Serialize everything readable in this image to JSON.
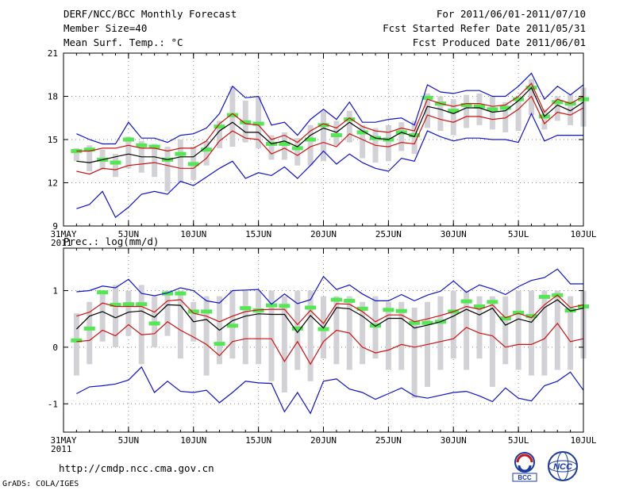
{
  "header": {
    "title": "DERF/NCC/BCC Monthly Forecast",
    "member_size": "Member Size=40",
    "variable_top": "Mean Surf. Temp.: °C",
    "period": "For 2011/06/01-2011/07/10",
    "fcst_started": "Fcst Started Refer Date 2011/05/31",
    "fcst_produced": "Fcst Produced Date 2011/06/01"
  },
  "footer": {
    "url": "http://cmdp.ncc.cma.gov.cn",
    "credit": "GrADS: COLA/IGES",
    "logo_left": "BCC",
    "logo_right": "NCC"
  },
  "colors": {
    "box": "#d2d2d6",
    "green": "#52e852",
    "black": "#000000",
    "red": "#d01010",
    "blue": "#1010d0",
    "grid": "#888888"
  },
  "chart_data": [
    {
      "type": "line",
      "title": "Mean Surf. Temp.: °C",
      "x_tick_labels": [
        "31MAY\n2011",
        "5JUN",
        "10JUN",
        "15JUN",
        "20JUN",
        "25JUN",
        "30JUN",
        "5JUL",
        "10JUL"
      ],
      "x_tick_days": [
        0,
        5,
        10,
        15,
        20,
        25,
        30,
        35,
        40
      ],
      "xlim": [
        0,
        40
      ],
      "ylim": [
        9,
        21
      ],
      "yticks": [
        9,
        12,
        15,
        18,
        21
      ],
      "days": [
        1,
        2,
        3,
        4,
        5,
        6,
        7,
        8,
        9,
        10,
        11,
        12,
        13,
        14,
        15,
        16,
        17,
        18,
        19,
        20,
        21,
        22,
        23,
        24,
        25,
        26,
        27,
        28,
        29,
        30,
        31,
        32,
        33,
        34,
        35,
        36,
        37,
        38,
        39,
        40
      ],
      "series": [
        {
          "name": "box_top",
          "values": [
            14.4,
            14.6,
            14.3,
            14.0,
            15.2,
            14.9,
            14.7,
            14.5,
            15.0,
            14.5,
            14.9,
            16.3,
            18.7,
            17.7,
            18.0,
            15.3,
            15.5,
            15.1,
            16.0,
            17.0,
            16.3,
            17.0,
            16.0,
            15.8,
            16.0,
            16.2,
            16.3,
            18.2,
            18.0,
            17.8,
            18.1,
            18.2,
            18.0,
            17.6,
            17.7,
            19.2,
            17.1,
            18.0,
            18.1,
            18.6
          ]
        },
        {
          "name": "box_bottom",
          "values": [
            13.5,
            12.8,
            12.9,
            12.4,
            13.0,
            12.7,
            12.4,
            11.4,
            12.0,
            12.2,
            13.2,
            14.4,
            14.5,
            14.8,
            14.4,
            13.6,
            13.6,
            13.2,
            13.2,
            13.5,
            14.6,
            14.8,
            13.7,
            13.4,
            13.5,
            14.2,
            14.0,
            15.8,
            15.6,
            15.3,
            15.8,
            16.0,
            15.7,
            15.5,
            15.6,
            16.7,
            15.7,
            16.3,
            16.0,
            15.9
          ]
        },
        {
          "name": "green_dash",
          "values": [
            14.2,
            14.3,
            13.6,
            13.4,
            15.0,
            14.6,
            14.5,
            13.6,
            14.0,
            13.3,
            14.3,
            15.9,
            16.7,
            16.2,
            16.1,
            14.7,
            14.7,
            14.4,
            15.0,
            16.0,
            15.3,
            16.4,
            15.5,
            15.1,
            15.0,
            15.5,
            15.3,
            17.9,
            17.5,
            17.0,
            17.4,
            17.3,
            17.1,
            17.2,
            17.8,
            18.6,
            16.6,
            17.6,
            17.5,
            17.8
          ]
        },
        {
          "name": "mean",
          "values": [
            13.5,
            13.4,
            13.6,
            13.8,
            14.0,
            13.8,
            13.8,
            13.6,
            13.8,
            13.8,
            14.5,
            15.6,
            16.2,
            15.5,
            15.5,
            14.7,
            14.9,
            14.5,
            15.3,
            15.8,
            15.5,
            16.2,
            15.6,
            15.1,
            15.0,
            15.5,
            15.2,
            17.3,
            17.1,
            16.8,
            17.2,
            17.2,
            16.9,
            17.0,
            17.7,
            18.6,
            16.6,
            17.4,
            17.0,
            17.6
          ]
        },
        {
          "name": "red_upper",
          "values": [
            14.2,
            14.2,
            14.4,
            14.4,
            14.6,
            14.4,
            14.4,
            14.2,
            14.4,
            14.4,
            14.9,
            16.1,
            16.8,
            16.1,
            16.0,
            15.0,
            15.3,
            14.8,
            15.6,
            16.1,
            15.8,
            16.5,
            15.9,
            15.6,
            15.5,
            15.8,
            15.6,
            17.8,
            17.5,
            17.3,
            17.5,
            17.5,
            17.3,
            17.4,
            18.0,
            18.9,
            16.9,
            17.8,
            17.5,
            18.0
          ]
        },
        {
          "name": "red_lower",
          "values": [
            12.8,
            12.6,
            13.0,
            12.9,
            13.2,
            13.3,
            13.4,
            13.2,
            13.0,
            13.0,
            13.7,
            14.9,
            15.6,
            15.1,
            15.0,
            14.0,
            14.4,
            13.9,
            14.5,
            14.8,
            14.5,
            15.4,
            15.0,
            14.6,
            14.5,
            14.8,
            14.7,
            16.7,
            16.4,
            16.2,
            16.6,
            16.6,
            16.4,
            16.5,
            17.1,
            18.0,
            16.1,
            16.9,
            16.7,
            17.2
          ]
        },
        {
          "name": "blue_upper",
          "values": [
            15.4,
            15.0,
            14.7,
            14.7,
            16.2,
            15.1,
            15.1,
            14.8,
            15.3,
            15.4,
            15.8,
            16.8,
            18.7,
            17.9,
            18.0,
            16.0,
            16.2,
            15.3,
            16.4,
            17.1,
            16.4,
            17.6,
            16.2,
            16.2,
            16.4,
            16.5,
            16.0,
            18.8,
            18.3,
            18.2,
            18.4,
            18.4,
            18.0,
            18.0,
            18.7,
            19.6,
            17.8,
            18.7,
            18.1,
            18.8
          ]
        },
        {
          "name": "blue_lower",
          "values": [
            10.2,
            10.5,
            11.4,
            9.6,
            10.3,
            11.2,
            11.4,
            11.2,
            12.1,
            11.8,
            12.4,
            13.0,
            13.5,
            12.3,
            12.7,
            12.5,
            13.1,
            12.3,
            13.2,
            14.2,
            13.3,
            14.0,
            13.4,
            13.0,
            12.8,
            13.7,
            13.5,
            15.6,
            15.2,
            14.9,
            15.1,
            15.1,
            15.0,
            15.0,
            14.8,
            16.8,
            14.9,
            15.3,
            15.3,
            15.3
          ]
        }
      ]
    },
    {
      "type": "line",
      "title": "Prec.: log(mm/d)",
      "x_tick_labels": [
        "31MAY\n2011",
        "5JUN",
        "10JUN",
        "15JUN",
        "20JUN",
        "25JUN",
        "30JUN",
        "5JUL",
        "10JUL"
      ],
      "x_tick_days": [
        0,
        5,
        10,
        15,
        20,
        25,
        30,
        35,
        40
      ],
      "xlim": [
        0,
        40
      ],
      "ylim": [
        -1.5,
        1.75
      ],
      "yticks": [
        -1,
        0,
        1
      ],
      "days": [
        1,
        2,
        3,
        4,
        5,
        6,
        7,
        8,
        9,
        10,
        11,
        12,
        13,
        14,
        15,
        16,
        17,
        18,
        19,
        20,
        21,
        22,
        23,
        24,
        25,
        26,
        27,
        28,
        29,
        30,
        31,
        32,
        33,
        34,
        35,
        36,
        37,
        38,
        39,
        40
      ],
      "series": [
        {
          "name": "box_top",
          "values": [
            0.6,
            0.8,
            1.0,
            1.1,
            1.0,
            1.1,
            0.9,
            1.0,
            1.0,
            0.8,
            0.9,
            0.9,
            1.0,
            1.0,
            1.0,
            1.0,
            0.9,
            1.0,
            1.0,
            0.9,
            0.9,
            0.9,
            0.8,
            0.9,
            0.8,
            0.8,
            0.7,
            0.8,
            0.9,
            1.0,
            1.0,
            0.9,
            0.9,
            0.9,
            1.0,
            1.0,
            1.0,
            1.0,
            0.9,
            1.0
          ]
        },
        {
          "name": "box_bottom",
          "values": [
            -0.5,
            -0.3,
            0.1,
            0.0,
            0.2,
            -0.3,
            0.0,
            0.2,
            -0.2,
            0.1,
            -0.5,
            -0.3,
            -0.2,
            -0.3,
            -0.3,
            -0.6,
            -0.8,
            -0.4,
            -0.6,
            -0.2,
            -0.3,
            -0.4,
            -0.3,
            -0.2,
            -0.4,
            -0.4,
            -0.9,
            -0.7,
            -0.4,
            -0.2,
            -0.4,
            -0.2,
            -0.7,
            -0.3,
            -0.4,
            -0.5,
            -0.5,
            -0.4,
            -0.4,
            -0.2
          ]
        },
        {
          "name": "green_dash",
          "values": [
            0.12,
            0.33,
            0.97,
            0.75,
            0.76,
            0.76,
            0.42,
            0.95,
            0.95,
            0.63,
            0.63,
            0.06,
            0.38,
            0.69,
            0.65,
            0.74,
            0.73,
            0.33,
            0.7,
            0.32,
            0.84,
            0.82,
            0.68,
            0.38,
            0.66,
            0.64,
            0.43,
            0.43,
            0.45,
            0.63,
            0.81,
            0.72,
            0.8,
            0.51,
            0.61,
            0.55,
            0.89,
            0.92,
            0.65,
            0.72
          ]
        },
        {
          "name": "mean",
          "values": [
            0.32,
            0.55,
            0.63,
            0.52,
            0.62,
            0.64,
            0.53,
            0.75,
            0.74,
            0.45,
            0.49,
            0.3,
            0.47,
            0.55,
            0.59,
            0.58,
            0.58,
            0.26,
            0.56,
            0.34,
            0.7,
            0.68,
            0.55,
            0.37,
            0.51,
            0.51,
            0.34,
            0.39,
            0.45,
            0.55,
            0.67,
            0.57,
            0.69,
            0.39,
            0.5,
            0.44,
            0.7,
            0.84,
            0.64,
            0.69
          ]
        },
        {
          "name": "red_upper",
          "values": [
            0.55,
            0.62,
            0.78,
            0.72,
            0.72,
            0.72,
            0.62,
            0.82,
            0.84,
            0.6,
            0.55,
            0.45,
            0.55,
            0.63,
            0.66,
            0.67,
            0.67,
            0.4,
            0.65,
            0.42,
            0.77,
            0.76,
            0.63,
            0.45,
            0.57,
            0.57,
            0.45,
            0.5,
            0.56,
            0.63,
            0.72,
            0.67,
            0.75,
            0.52,
            0.6,
            0.52,
            0.75,
            0.92,
            0.7,
            0.75
          ]
        },
        {
          "name": "red_lower",
          "values": [
            0.1,
            0.12,
            0.3,
            0.2,
            0.4,
            0.22,
            0.24,
            0.45,
            0.3,
            0.18,
            0.05,
            -0.15,
            0.1,
            0.15,
            0.15,
            0.15,
            -0.25,
            0.1,
            -0.3,
            0.1,
            0.3,
            0.25,
            0.0,
            -0.1,
            -0.05,
            0.05,
            0.0,
            0.05,
            0.1,
            0.15,
            0.35,
            0.25,
            0.2,
            0.0,
            0.05,
            0.05,
            0.15,
            0.42,
            0.1,
            0.15
          ]
        },
        {
          "name": "blue_upper",
          "values": [
            0.98,
            1.0,
            1.08,
            1.05,
            1.2,
            0.95,
            0.91,
            0.96,
            1.05,
            1.0,
            0.82,
            0.78,
            1.0,
            1.01,
            1.02,
            0.76,
            0.94,
            0.77,
            0.84,
            1.25,
            1.02,
            1.1,
            0.94,
            0.82,
            0.82,
            0.93,
            0.82,
            0.92,
            0.99,
            1.17,
            0.97,
            1.1,
            1.03,
            0.93,
            1.07,
            1.18,
            1.23,
            1.38,
            1.12,
            1.12
          ]
        },
        {
          "name": "blue_lower",
          "values": [
            -0.82,
            -0.7,
            -0.68,
            -0.65,
            -0.58,
            -0.35,
            -0.8,
            -0.6,
            -0.78,
            -0.8,
            -0.76,
            -0.98,
            -0.8,
            -0.6,
            -0.63,
            -0.64,
            -1.14,
            -0.8,
            -1.17,
            -0.6,
            -0.56,
            -0.74,
            -0.8,
            -0.92,
            -0.82,
            -0.72,
            -0.86,
            -0.9,
            -0.85,
            -0.8,
            -0.78,
            -0.86,
            -0.96,
            -0.72,
            -0.9,
            -0.95,
            -0.68,
            -0.6,
            -0.44,
            -0.76
          ]
        }
      ]
    }
  ]
}
